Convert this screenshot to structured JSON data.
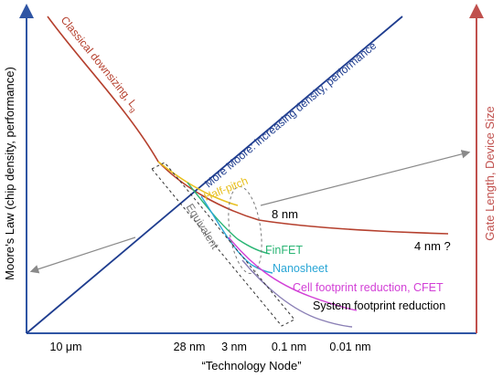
{
  "labels": {
    "left_axis": "Moore’s Law (chip density, performance)",
    "right_axis": "Gate Length, Device Size",
    "x_axis": "“Technology Node”",
    "classical": "Classical downsizing, L",
    "classical_sub": "g",
    "more_moore": "More Moore: increasing density, performance",
    "half_pitch": "Half-pitch",
    "node_8nm": "8 nm",
    "node_4nm": "4 nm ?",
    "finfet": "FinFET",
    "nanosheet": "Nanosheet",
    "cfet": "Cell footprint reduction, CFET",
    "system": "System footprint reduction",
    "equivalent": "Equivalent"
  },
  "ticks": [
    "10 μm",
    "28 nm",
    "3 nm",
    "0.1 nm",
    "0.01 nm"
  ],
  "colors": {
    "left_axis": "#2f55a4",
    "right_axis": "#c0504d",
    "classical": "#b5402e",
    "more_moore": "#1f3d8f",
    "half_pitch": "#e8c020",
    "finfet": "#2ab574",
    "nanosheet": "#2aa6d6",
    "cfet": "#d23fd6",
    "system": "#8a7fb5",
    "arrow": "#8a8a8a",
    "text": "#000000"
  }
}
